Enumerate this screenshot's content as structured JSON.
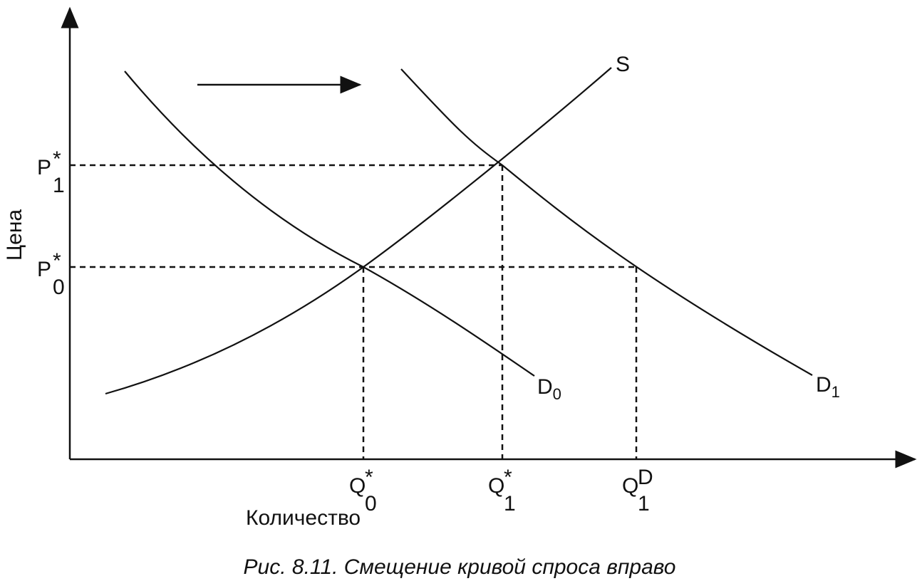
{
  "axes": {
    "y_label": "Цена",
    "x_label": "Количество"
  },
  "curves": {
    "supply": "S",
    "demand_0": {
      "base": "D",
      "sub": "0"
    },
    "demand_1": {
      "base": "D",
      "sub": "1"
    }
  },
  "price_labels": [
    {
      "base": "P",
      "sup": "*",
      "sub": "1"
    },
    {
      "base": "P",
      "sup": "*",
      "sub": "0"
    }
  ],
  "quantity_labels": [
    {
      "base": "Q",
      "sup": "*",
      "sub": "0"
    },
    {
      "base": "Q",
      "sup": "*",
      "sub": "1"
    },
    {
      "base": "Q",
      "sup": "D",
      "sub": "1"
    }
  ],
  "caption": "Рис. 8.11. Смещение кривой спроса вправо"
}
